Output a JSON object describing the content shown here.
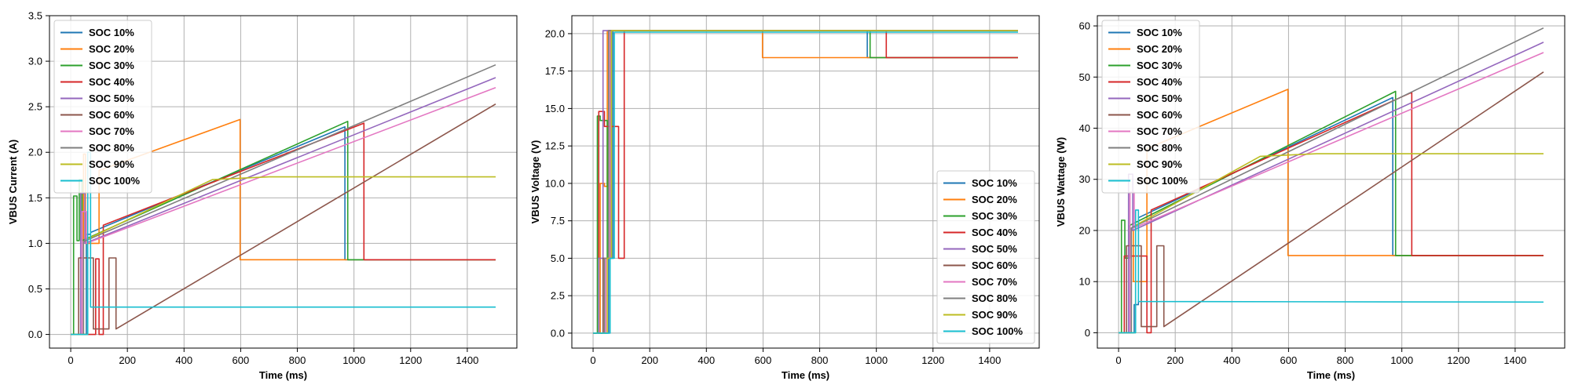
{
  "chart_data": [
    {
      "type": "line",
      "xlabel": "Time (ms)",
      "ylabel": "VBUS Current (A)",
      "xlim": [
        -75,
        1575
      ],
      "ylim": [
        -0.15,
        3.5
      ],
      "xticks": [
        0,
        200,
        400,
        600,
        800,
        1000,
        1200,
        1400
      ],
      "yticks": [
        0.0,
        0.5,
        1.0,
        1.5,
        2.0,
        2.5,
        3.0,
        3.5
      ],
      "ytick_labels": [
        "0.0",
        "0.5",
        "1.0",
        "1.5",
        "2.0",
        "2.5",
        "3.0",
        "3.5"
      ],
      "grid": true,
      "legend_position": "upper-left",
      "series": [
        {
          "name": "SOC 10%",
          "color": "#1f77b4",
          "x": [
            0,
            55,
            55,
            70,
            70,
            968,
            968,
            1500
          ],
          "y": [
            0,
            0,
            1.1,
            1.1,
            1.12,
            2.28,
            0.82,
            0.82
          ]
        },
        {
          "name": "SOC 20%",
          "color": "#ff7f0e",
          "x": [
            0,
            45,
            45,
            52,
            52,
            100,
            100,
            598,
            598,
            1500
          ],
          "y": [
            0,
            0,
            1.98,
            1.98,
            1.0,
            1.0,
            1.8,
            2.36,
            0.82,
            0.82
          ]
        },
        {
          "name": "SOC 30%",
          "color": "#2ca02c",
          "x": [
            0,
            10,
            10,
            22,
            22,
            30,
            30,
            40,
            40,
            978,
            978,
            1500
          ],
          "y": [
            0,
            0,
            1.52,
            1.52,
            1.03,
            1.03,
            1.7,
            1.7,
            1.03,
            2.34,
            0.82,
            0.82
          ]
        },
        {
          "name": "SOC 40%",
          "color": "#d62728",
          "x": [
            0,
            88,
            88,
            100,
            100,
            115,
            115,
            1035,
            1035,
            1500
          ],
          "y": [
            0,
            0,
            0.83,
            0.83,
            0,
            0,
            1.2,
            2.32,
            0.82,
            0.82
          ]
        },
        {
          "name": "SOC 50%",
          "color": "#9467bd",
          "x": [
            0,
            35,
            35,
            50,
            50,
            1500
          ],
          "y": [
            0,
            0,
            1.55,
            1.55,
            1.0,
            2.82
          ]
        },
        {
          "name": "SOC 60%",
          "color": "#8c564b",
          "x": [
            0,
            28,
            28,
            80,
            80,
            135,
            135,
            160,
            160,
            1500
          ],
          "y": [
            0,
            0,
            0.84,
            0.84,
            0.06,
            0.06,
            0.84,
            0.84,
            0.06,
            2.53
          ]
        },
        {
          "name": "SOC 70%",
          "color": "#e377c2",
          "x": [
            0,
            40,
            40,
            55,
            55,
            1500
          ],
          "y": [
            0,
            0,
            1.35,
            1.35,
            1.0,
            2.71
          ]
        },
        {
          "name": "SOC 80%",
          "color": "#7f7f7f",
          "x": [
            0,
            45,
            45,
            1500
          ],
          "y": [
            0,
            0,
            1.02,
            2.96
          ]
        },
        {
          "name": "SOC 90%",
          "color": "#bcbd22",
          "x": [
            0,
            60,
            60,
            500,
            700,
            1500
          ],
          "y": [
            0,
            0,
            1.05,
            1.7,
            1.73,
            1.73
          ]
        },
        {
          "name": "SOC 100%",
          "color": "#17becf",
          "x": [
            0,
            60,
            60,
            70,
            70,
            1500
          ],
          "y": [
            0,
            0,
            2.0,
            2.0,
            0.3,
            0.3
          ]
        }
      ]
    },
    {
      "type": "line",
      "xlabel": "Time (ms)",
      "ylabel": "VBUS Voltage (V)",
      "xlim": [
        -75,
        1575
      ],
      "ylim": [
        -1.0,
        21.2
      ],
      "xticks": [
        0,
        200,
        400,
        600,
        800,
        1000,
        1200,
        1400
      ],
      "yticks": [
        0,
        2.5,
        5,
        7.5,
        10,
        12.5,
        15,
        17.5,
        20
      ],
      "ytick_labels": [
        "0.0",
        "2.5",
        "5.0",
        "7.5",
        "10.0",
        "12.5",
        "15.0",
        "17.5",
        "20.0"
      ],
      "grid": true,
      "legend_position": "lower-right",
      "series": [
        {
          "name": "SOC 10%",
          "color": "#1f77b4",
          "x": [
            0,
            55,
            55,
            70,
            70,
            968,
            968,
            1500
          ],
          "y": [
            0,
            0,
            5.0,
            5.0,
            20.2,
            20.2,
            18.4,
            18.4
          ]
        },
        {
          "name": "SOC 20%",
          "color": "#ff7f0e",
          "x": [
            0,
            25,
            25,
            40,
            40,
            50,
            50,
            598,
            598,
            1500
          ],
          "y": [
            0,
            0,
            10.0,
            10.0,
            9.8,
            9.8,
            20.2,
            20.2,
            18.4,
            18.4
          ]
        },
        {
          "name": "SOC 30%",
          "color": "#2ca02c",
          "x": [
            0,
            15,
            15,
            25,
            25,
            50,
            50,
            62,
            62,
            978,
            978,
            1500
          ],
          "y": [
            0,
            0,
            14.5,
            14.5,
            14.2,
            14.2,
            5.0,
            5.0,
            20.2,
            20.2,
            18.4,
            18.4
          ]
        },
        {
          "name": "SOC 40%",
          "color": "#d62728",
          "x": [
            0,
            20,
            20,
            40,
            40,
            90,
            90,
            110,
            110,
            1035,
            1035,
            1500
          ],
          "y": [
            0,
            0,
            14.8,
            14.8,
            13.8,
            13.8,
            5.0,
            5.0,
            20.2,
            20.2,
            18.4,
            18.4
          ]
        },
        {
          "name": "SOC 50%",
          "color": "#9467bd",
          "x": [
            0,
            20,
            20,
            35,
            35,
            1500
          ],
          "y": [
            0,
            0,
            5.0,
            5.0,
            20.2,
            20.2
          ]
        },
        {
          "name": "SOC 60%",
          "color": "#8c564b",
          "x": [
            0,
            35,
            35,
            55,
            55,
            1500
          ],
          "y": [
            0,
            0,
            5.0,
            5.0,
            20.2,
            20.2
          ]
        },
        {
          "name": "SOC 70%",
          "color": "#e377c2",
          "x": [
            0,
            45,
            45,
            60,
            60,
            1500
          ],
          "y": [
            0,
            0,
            5.0,
            5.0,
            20.2,
            20.2
          ]
        },
        {
          "name": "SOC 80%",
          "color": "#7f7f7f",
          "x": [
            0,
            40,
            40,
            55,
            55,
            1500
          ],
          "y": [
            0,
            0,
            5.0,
            5.0,
            20.2,
            20.2
          ]
        },
        {
          "name": "SOC 90%",
          "color": "#bcbd22",
          "x": [
            0,
            50,
            50,
            65,
            65,
            1500
          ],
          "y": [
            0,
            0,
            5.0,
            5.0,
            20.2,
            20.2
          ]
        },
        {
          "name": "SOC 100%",
          "color": "#17becf",
          "x": [
            0,
            60,
            60,
            75,
            75,
            1500
          ],
          "y": [
            0,
            0,
            5.0,
            5.0,
            20.1,
            20.1
          ]
        }
      ]
    },
    {
      "type": "line",
      "xlabel": "Time (ms)",
      "ylabel": "VBUS Wattage (W)",
      "xlim": [
        -75,
        1575
      ],
      "ylim": [
        -3.0,
        62.0
      ],
      "xticks": [
        0,
        200,
        400,
        600,
        800,
        1000,
        1200,
        1400
      ],
      "yticks": [
        0,
        10,
        20,
        30,
        40,
        50,
        60
      ],
      "ytick_labels": [
        "0",
        "10",
        "20",
        "30",
        "40",
        "50",
        "60"
      ],
      "grid": true,
      "legend_position": "upper-left",
      "series": [
        {
          "name": "SOC 10%",
          "color": "#1f77b4",
          "x": [
            0,
            55,
            55,
            70,
            70,
            968,
            968,
            1500
          ],
          "y": [
            0,
            0,
            5.5,
            5.5,
            22.5,
            46.0,
            15.1,
            15.1
          ]
        },
        {
          "name": "SOC 20%",
          "color": "#ff7f0e",
          "x": [
            0,
            45,
            45,
            52,
            52,
            100,
            100,
            598,
            598,
            1500
          ],
          "y": [
            0,
            0,
            20.0,
            20.0,
            10.0,
            10.0,
            36.0,
            47.6,
            15.1,
            15.1
          ]
        },
        {
          "name": "SOC 30%",
          "color": "#2ca02c",
          "x": [
            0,
            10,
            10,
            22,
            22,
            40,
            40,
            978,
            978,
            1500
          ],
          "y": [
            0,
            0,
            22.0,
            22.0,
            14.6,
            14.6,
            21.0,
            47.2,
            15.1,
            15.1
          ]
        },
        {
          "name": "SOC 40%",
          "color": "#d62728",
          "x": [
            0,
            20,
            20,
            100,
            100,
            115,
            115,
            1035,
            1035,
            1500
          ],
          "y": [
            0,
            0,
            15.0,
            15.0,
            0,
            0,
            24.0,
            47.0,
            15.1,
            15.1
          ]
        },
        {
          "name": "SOC 50%",
          "color": "#9467bd",
          "x": [
            0,
            35,
            35,
            50,
            50,
            1500
          ],
          "y": [
            0,
            0,
            31.0,
            31.0,
            20.0,
            56.8
          ]
        },
        {
          "name": "SOC 60%",
          "color": "#8c564b",
          "x": [
            0,
            28,
            28,
            80,
            80,
            135,
            135,
            160,
            160,
            1500
          ],
          "y": [
            0,
            0,
            17.0,
            17.0,
            1.2,
            1.2,
            17.0,
            17.0,
            1.2,
            51.0
          ]
        },
        {
          "name": "SOC 70%",
          "color": "#e377c2",
          "x": [
            0,
            40,
            40,
            55,
            55,
            1500
          ],
          "y": [
            0,
            0,
            27.5,
            27.5,
            20.5,
            54.8
          ]
        },
        {
          "name": "SOC 80%",
          "color": "#7f7f7f",
          "x": [
            0,
            45,
            45,
            1500
          ],
          "y": [
            0,
            0,
            20.5,
            59.6
          ]
        },
        {
          "name": "SOC 90%",
          "color": "#bcbd22",
          "x": [
            0,
            60,
            60,
            500,
            700,
            1500
          ],
          "y": [
            0,
            0,
            21.0,
            34.5,
            35.0,
            35.0
          ]
        },
        {
          "name": "SOC 100%",
          "color": "#17becf",
          "x": [
            0,
            60,
            60,
            70,
            70,
            1500
          ],
          "y": [
            0,
            0,
            24.0,
            24.0,
            6.1,
            6.0
          ]
        }
      ]
    }
  ]
}
